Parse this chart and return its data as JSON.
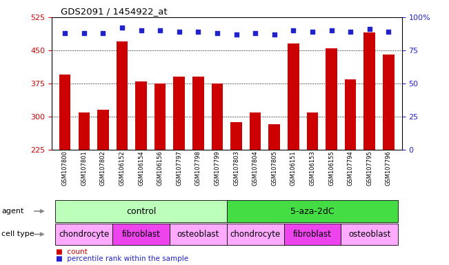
{
  "title": "GDS2091 / 1454922_at",
  "samples": [
    "GSM107800",
    "GSM107801",
    "GSM107802",
    "GSM106152",
    "GSM106154",
    "GSM106156",
    "GSM107797",
    "GSM107798",
    "GSM107799",
    "GSM107803",
    "GSM107804",
    "GSM107805",
    "GSM106151",
    "GSM106153",
    "GSM106155",
    "GSM107794",
    "GSM107795",
    "GSM107796"
  ],
  "counts": [
    395,
    310,
    315,
    470,
    380,
    375,
    390,
    390,
    375,
    288,
    310,
    283,
    465,
    310,
    455,
    385,
    490,
    440
  ],
  "percentile_ranks": [
    88,
    88,
    88,
    92,
    90,
    90,
    89,
    89,
    88,
    87,
    88,
    87,
    90,
    89,
    90,
    89,
    91,
    89
  ],
  "ylim_left": [
    225,
    525
  ],
  "ylim_right": [
    0,
    100
  ],
  "yticks_left": [
    225,
    300,
    375,
    450,
    525
  ],
  "yticks_right": [
    0,
    25,
    50,
    75,
    100
  ],
  "bar_color": "#cc0000",
  "dot_color": "#2222cc",
  "bar_width": 0.6,
  "agent_groups": [
    {
      "label": "control",
      "start": 0,
      "end": 9,
      "color": "#bbffbb"
    },
    {
      "label": "5-aza-2dC",
      "start": 9,
      "end": 18,
      "color": "#44dd44"
    }
  ],
  "cell_type_groups": [
    {
      "label": "chondrocyte",
      "start": 0,
      "end": 3,
      "color": "#ffaaff"
    },
    {
      "label": "fibroblast",
      "start": 3,
      "end": 6,
      "color": "#ee66ee"
    },
    {
      "label": "osteoblast",
      "start": 6,
      "end": 9,
      "color": "#ffaaff"
    },
    {
      "label": "chondrocyte",
      "start": 9,
      "end": 12,
      "color": "#ffaaff"
    },
    {
      "label": "fibroblast",
      "start": 12,
      "end": 15,
      "color": "#ee66ee"
    },
    {
      "label": "osteoblast",
      "start": 15,
      "end": 18,
      "color": "#ffaaff"
    }
  ],
  "legend_items": [
    {
      "label": "count",
      "color": "#cc0000"
    },
    {
      "label": "percentile rank within the sample",
      "color": "#2222cc"
    }
  ],
  "bg_color": "#ffffff",
  "tick_label_color_left": "#cc0000",
  "tick_label_color_right": "#2222cc",
  "label_row1": "agent",
  "label_row2": "cell type",
  "bar_base": 225
}
